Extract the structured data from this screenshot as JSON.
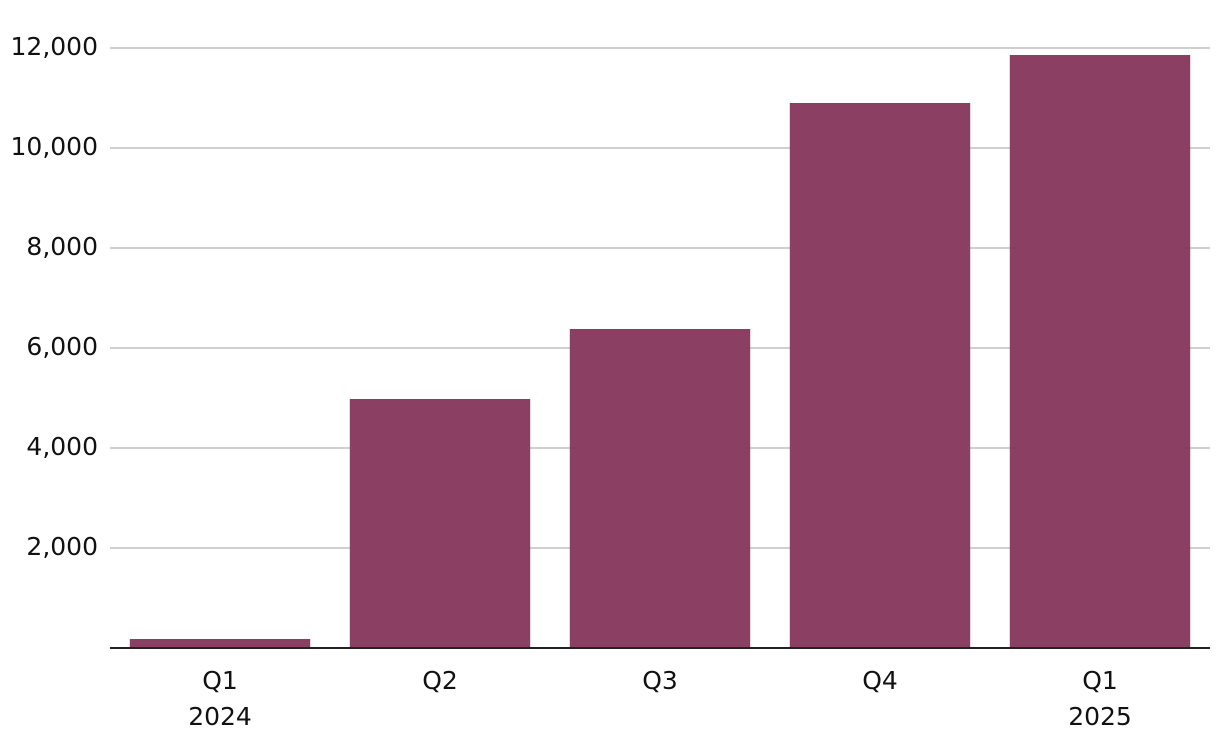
{
  "chart_data": {
    "type": "bar",
    "categories": [
      "Q1",
      "Q2",
      "Q3",
      "Q4",
      "Q1"
    ],
    "category_years": [
      "2024",
      null,
      null,
      null,
      "2025"
    ],
    "values": [
      180,
      4980,
      6380,
      10900,
      11860
    ],
    "color": "#8b3f62",
    "ylim": [
      0,
      12000
    ],
    "yticks": [
      {
        "value": 2000,
        "label": "2,000"
      },
      {
        "value": 4000,
        "label": "4,000"
      },
      {
        "value": 6000,
        "label": "6,000"
      },
      {
        "value": 8000,
        "label": "8,000"
      },
      {
        "value": 10000,
        "label": "10,000"
      },
      {
        "value": 12000,
        "label": "12,000"
      }
    ],
    "grid": true
  }
}
